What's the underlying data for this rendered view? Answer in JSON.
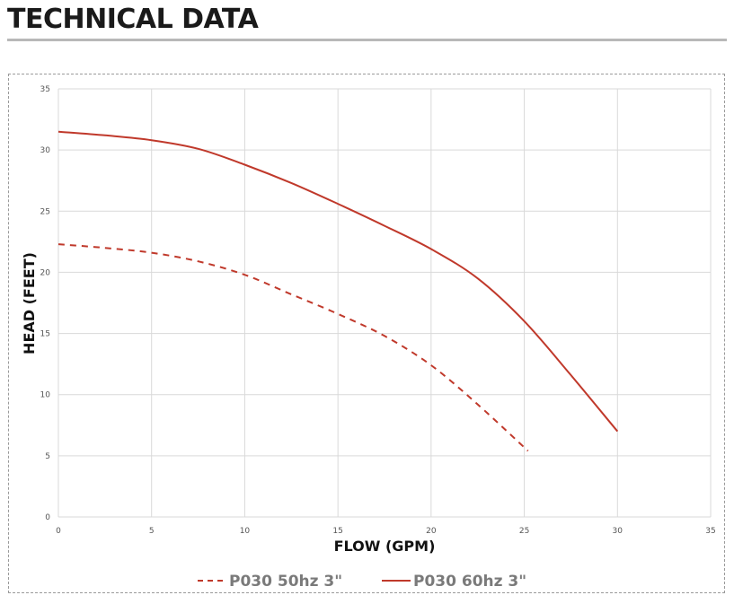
{
  "page_title": "TECHNICAL DATA",
  "chart_data": {
    "type": "line",
    "title": "",
    "xlabel": "FLOW (GPM)",
    "ylabel": "HEAD (FEET)",
    "xlim": [
      0,
      35
    ],
    "ylim": [
      0,
      35
    ],
    "xticks": [
      0,
      5,
      10,
      15,
      20,
      25,
      30,
      35
    ],
    "yticks": [
      0,
      5,
      10,
      15,
      20,
      25,
      30,
      35
    ],
    "grid": true,
    "legend_position": "bottom-center",
    "series": [
      {
        "name": "P030 50hz 3\"",
        "style": "dashed",
        "color": "#c0392b",
        "x": [
          0,
          2.5,
          5,
          7.5,
          10,
          12.5,
          15,
          17.5,
          20,
          22.5,
          25.2
        ],
        "y": [
          22.3,
          22.0,
          21.6,
          20.9,
          19.8,
          18.2,
          16.6,
          14.8,
          12.4,
          9.2,
          5.4
        ]
      },
      {
        "name": "P030 60hz 3\"",
        "style": "solid",
        "color": "#c0392b",
        "x": [
          0,
          2.5,
          5,
          7.5,
          10,
          12.5,
          15,
          17.5,
          20,
          22.5,
          25,
          27.5,
          30
        ],
        "y": [
          31.5,
          31.2,
          30.8,
          30.1,
          28.8,
          27.3,
          25.6,
          23.8,
          21.9,
          19.5,
          16.0,
          11.6,
          7.0
        ]
      }
    ]
  }
}
